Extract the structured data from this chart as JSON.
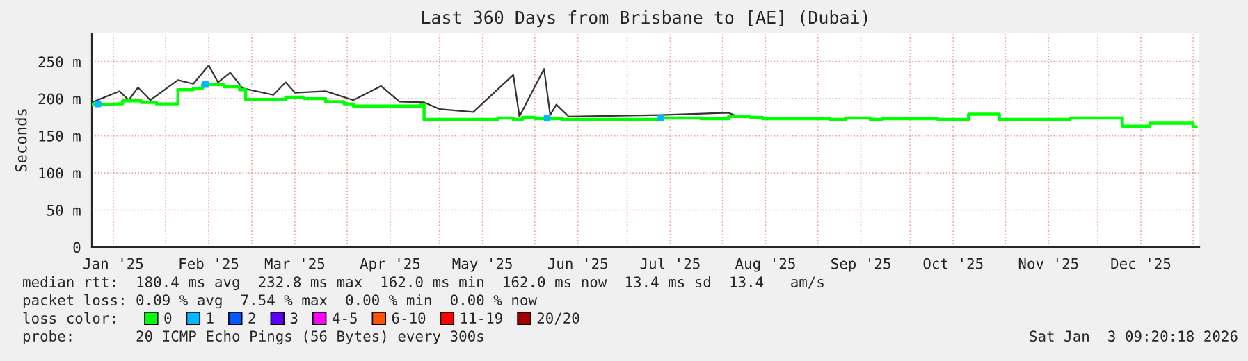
{
  "chart_data": {
    "type": "step",
    "title": "Last 360 Days from Brisbane to [AE] (Dubai)",
    "ylabel": "Seconds",
    "xlim": [
      "2025-01-08",
      "2026-01-03"
    ],
    "xticks": [
      {
        "value": "2025-01-15",
        "label": "Jan '25"
      },
      {
        "value": "2025-02-01",
        "label": null
      },
      {
        "value": "2025-02-15",
        "label": "Feb '25"
      },
      {
        "value": "2025-03-01",
        "label": null
      },
      {
        "value": "2025-03-15",
        "label": "Mar '25"
      },
      {
        "value": "2025-04-01",
        "label": null
      },
      {
        "value": "2025-04-15",
        "label": "Apr '25"
      },
      {
        "value": "2025-05-01",
        "label": null
      },
      {
        "value": "2025-05-15",
        "label": "May '25"
      },
      {
        "value": "2025-06-01",
        "label": null
      },
      {
        "value": "2025-06-15",
        "label": "Jun '25"
      },
      {
        "value": "2025-07-01",
        "label": null
      },
      {
        "value": "2025-07-15",
        "label": "Jul '25"
      },
      {
        "value": "2025-08-01",
        "label": null
      },
      {
        "value": "2025-08-15",
        "label": "Aug '25"
      },
      {
        "value": "2025-09-01",
        "label": null
      },
      {
        "value": "2025-09-15",
        "label": "Sep '25"
      },
      {
        "value": "2025-10-01",
        "label": null
      },
      {
        "value": "2025-10-15",
        "label": "Oct '25"
      },
      {
        "value": "2025-11-01",
        "label": null
      },
      {
        "value": "2025-11-15",
        "label": "Nov '25"
      },
      {
        "value": "2025-12-01",
        "label": null
      },
      {
        "value": "2025-12-15",
        "label": "Dec '25"
      },
      {
        "value": "2026-01-01",
        "label": null
      }
    ],
    "ylim": [
      0,
      288
    ],
    "yticks": [
      0,
      {
        "value": 50,
        "label": "50 m"
      },
      {
        "value": 100,
        "label": "100 m"
      },
      {
        "value": 150,
        "label": "150 m"
      },
      {
        "value": 200,
        "label": "200 m"
      },
      {
        "value": 250,
        "label": "250 m"
      }
    ],
    "grid": true,
    "legend": "bottom",
    "series": [
      {
        "type": "line",
        "color": "#333333",
        "x": [
          "2025-01-08",
          "2025-01-17",
          "2025-01-20",
          "2025-01-23",
          "2025-01-27",
          "2025-02-05",
          "2025-02-10",
          "2025-02-15",
          "2025-02-18",
          "2025-02-22",
          "2025-02-26",
          "2025-03-08",
          "2025-03-12",
          "2025-03-15",
          "2025-03-25",
          "2025-04-03",
          "2025-04-12",
          "2025-04-18",
          "2025-04-26",
          "2025-05-01",
          "2025-05-12",
          "2025-05-25",
          "2025-05-27",
          "2025-06-04",
          "2025-06-06",
          "2025-06-08",
          "2025-06-12",
          "2025-07-12",
          "2025-08-03",
          "2025-08-06"
        ],
        "values": [
          195,
          210,
          198,
          215,
          198,
          225,
          220,
          245,
          222,
          235,
          214,
          205,
          222,
          208,
          210,
          198,
          217,
          196,
          195,
          186,
          182,
          232,
          176,
          240,
          178,
          192,
          176,
          178,
          181,
          176
        ]
      },
      {
        "name": "0",
        "color": "#00ff00",
        "x": [
          "2025-01-08",
          "2025-01-15",
          "2025-01-18",
          "2025-01-24",
          "2025-01-29",
          "2025-02-05",
          "2025-02-10",
          "2025-02-13",
          "2025-02-20",
          "2025-02-25",
          "2025-02-27",
          "2025-03-05",
          "2025-03-12",
          "2025-03-18",
          "2025-03-25",
          "2025-03-31",
          "2025-04-03",
          "2025-04-15",
          "2025-04-25",
          "2025-04-26",
          "2025-05-15",
          "2025-05-20",
          "2025-05-25",
          "2025-05-28",
          "2025-06-01",
          "2025-06-10",
          "2025-07-01",
          "2025-07-12",
          "2025-07-25",
          "2025-08-03",
          "2025-08-10",
          "2025-08-14",
          "2025-09-05",
          "2025-09-10",
          "2025-09-18",
          "2025-09-22",
          "2025-10-10",
          "2025-10-20",
          "2025-10-30",
          "2025-11-20",
          "2025-11-22",
          "2025-12-09",
          "2025-12-18",
          "2026-01-01",
          "2026-01-02"
        ],
        "values": [
          192,
          193,
          197,
          195,
          193,
          212,
          214,
          219,
          216,
          212,
          199,
          199,
          202,
          200,
          196,
          193,
          190,
          190,
          192,
          172,
          172,
          174,
          172,
          175,
          173,
          172,
          172,
          174,
          173,
          176,
          175,
          173,
          172,
          174,
          172,
          173,
          172,
          179,
          172,
          172,
          174,
          163,
          167,
          162,
          162
        ]
      },
      {
        "name": "1",
        "type": "scatter",
        "color": "#00b8ff",
        "x": [
          "2025-01-10",
          "2025-02-14",
          "2025-06-05",
          "2025-07-12"
        ],
        "values": [
          193,
          219,
          174,
          174
        ]
      },
      {
        "name": "2",
        "color": "#0059ff"
      },
      {
        "name": "3",
        "color": "#5e00ff"
      },
      {
        "name": "4-5",
        "color": "#ff00ff"
      },
      {
        "name": "6-10",
        "color": "#ff5500"
      },
      {
        "name": "11-19",
        "color": "#ff0000"
      },
      {
        "name": "20/20",
        "color": "#a10000"
      }
    ],
    "annotations": [
      "median rtt:  180.4 ms avg  232.8 ms max  162.0 ms min  162.0 ms now  13.4 ms sd  13.4   am/s",
      "packet loss: 0.09 % avg  7.54 % max  0.00 % min  0.00 % now",
      "loss color:",
      "probe:       20 ICMP Echo Pings (56 Bytes) every 300s",
      "Sat Jan  3 09:20:18 2026"
    ]
  }
}
